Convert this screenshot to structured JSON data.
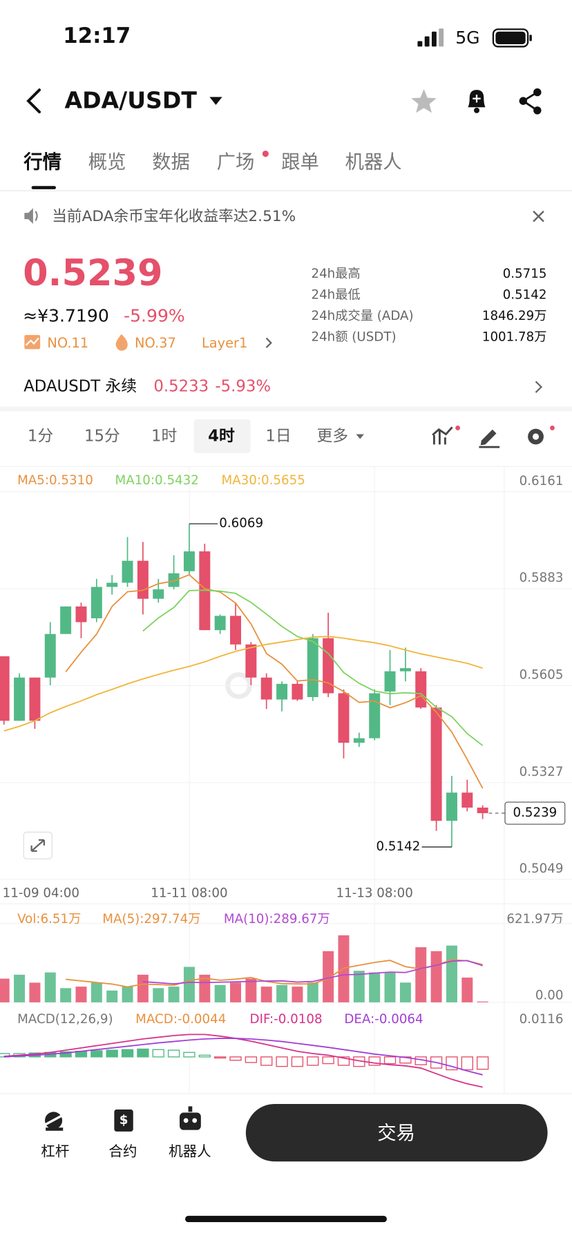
{
  "status_bar": {
    "time": "12:17",
    "network": "5G"
  },
  "header": {
    "pair": "ADA/USDT"
  },
  "tabs": [
    "行情",
    "概览",
    "数据",
    "广场",
    "跟单",
    "机器人"
  ],
  "active_tab": 0,
  "notice": "当前ADA余币宝年化收益率达2.51%",
  "price": {
    "last": "0.5239",
    "cny": "≈¥3.7190",
    "change": "-5.99%",
    "tags": [
      "NO.11",
      "NO.37",
      "Layer1"
    ]
  },
  "stats": [
    {
      "label": "24h最高",
      "value": "0.5715"
    },
    {
      "label": "24h最低",
      "value": "0.5142"
    },
    {
      "label": "24h成交量 (ADA)",
      "value": "1846.29万"
    },
    {
      "label": "24h额 (USDT)",
      "value": "1001.78万"
    }
  ],
  "perp": {
    "name": "ADAUSDT 永续",
    "price": "0.5233",
    "change": "-5.93%"
  },
  "intervals": [
    "1分",
    "15分",
    "1时",
    "4时",
    "1日",
    "更多"
  ],
  "active_interval": 3,
  "chart": {
    "type": "candlestick",
    "ma_labels": [
      {
        "text": "MA5:0.5310",
        "color": "#e8913f"
      },
      {
        "text": "MA10:0.5432",
        "color": "#7fd35e"
      },
      {
        "text": "MA30:0.5655",
        "color": "#f0b53a"
      }
    ],
    "up_color": "#52b986",
    "down_color": "#e5506a",
    "ylim": [
      0.5049,
      0.6161
    ],
    "yticks": [
      0.6161,
      0.5883,
      0.5605,
      0.5327,
      0.5049
    ],
    "xticks": [
      {
        "value": -1,
        "label": "11-09 04:00"
      },
      {
        "value": 12,
        "label": "11-11 08:00"
      },
      {
        "value": 24,
        "label": "11-13 08:00"
      }
    ],
    "candles": [
      {
        "open": 0.5689,
        "high": 0.5689,
        "low": 0.5493,
        "close": 0.5504
      },
      {
        "open": 0.5504,
        "high": 0.564,
        "low": 0.5504,
        "close": 0.5628
      },
      {
        "open": 0.5628,
        "high": 0.5628,
        "low": 0.5481,
        "close": 0.5504
      },
      {
        "open": 0.5628,
        "high": 0.5787,
        "low": 0.5606,
        "close": 0.5753
      },
      {
        "open": 0.5753,
        "high": 0.5832,
        "low": 0.5753,
        "close": 0.5832
      },
      {
        "open": 0.5832,
        "high": 0.5843,
        "low": 0.5741,
        "close": 0.5787
      },
      {
        "open": 0.5798,
        "high": 0.5911,
        "low": 0.5787,
        "close": 0.5888
      },
      {
        "open": 0.5888,
        "high": 0.5922,
        "low": 0.5866,
        "close": 0.59
      },
      {
        "open": 0.59,
        "high": 0.6031,
        "low": 0.5888,
        "close": 0.5963
      },
      {
        "open": 0.5963,
        "high": 0.6017,
        "low": 0.5809,
        "close": 0.5854
      },
      {
        "open": 0.5854,
        "high": 0.5911,
        "low": 0.5843,
        "close": 0.5881
      },
      {
        "open": 0.5888,
        "high": 0.5979,
        "low": 0.5881,
        "close": 0.5927
      },
      {
        "open": 0.5933,
        "high": 0.6069,
        "low": 0.5922,
        "close": 0.599
      },
      {
        "open": 0.599,
        "high": 0.6012,
        "low": 0.5764,
        "close": 0.5764
      },
      {
        "open": 0.5764,
        "high": 0.5809,
        "low": 0.5753,
        "close": 0.5805
      },
      {
        "open": 0.5805,
        "high": 0.5843,
        "low": 0.5707,
        "close": 0.5723
      },
      {
        "open": 0.5723,
        "high": 0.573,
        "low": 0.5606,
        "close": 0.5628
      },
      {
        "open": 0.5628,
        "high": 0.564,
        "low": 0.5538,
        "close": 0.5565
      },
      {
        "open": 0.5565,
        "high": 0.5617,
        "low": 0.5531,
        "close": 0.561
      },
      {
        "open": 0.561,
        "high": 0.5617,
        "low": 0.5561,
        "close": 0.5565
      },
      {
        "open": 0.5572,
        "high": 0.5753,
        "low": 0.5561,
        "close": 0.5741
      },
      {
        "open": 0.5741,
        "high": 0.5814,
        "low": 0.5572,
        "close": 0.5583
      },
      {
        "open": 0.5583,
        "high": 0.5594,
        "low": 0.5396,
        "close": 0.5441
      },
      {
        "open": 0.5441,
        "high": 0.547,
        "low": 0.5429,
        "close": 0.5454
      },
      {
        "open": 0.5454,
        "high": 0.5594,
        "low": 0.5448,
        "close": 0.5583
      },
      {
        "open": 0.5588,
        "high": 0.5707,
        "low": 0.5549,
        "close": 0.5646
      },
      {
        "open": 0.5646,
        "high": 0.5714,
        "low": 0.5617,
        "close": 0.5655
      },
      {
        "open": 0.5646,
        "high": 0.5655,
        "low": 0.5538,
        "close": 0.5542
      },
      {
        "open": 0.5542,
        "high": 0.5549,
        "low": 0.5188,
        "close": 0.5217
      },
      {
        "open": 0.5217,
        "high": 0.5346,
        "low": 0.5142,
        "close": 0.5298
      },
      {
        "open": 0.5298,
        "high": 0.5335,
        "low": 0.5244,
        "close": 0.5255
      },
      {
        "open": 0.5255,
        "high": 0.5262,
        "low": 0.5222,
        "close": 0.5239
      }
    ],
    "ma30": [
      0.5475,
      0.5488,
      0.5504,
      0.5527,
      0.5545,
      0.5561,
      0.5579,
      0.5594,
      0.561,
      0.5624,
      0.5637,
      0.5649,
      0.566,
      0.5673,
      0.5689,
      0.5703,
      0.5714,
      0.5723,
      0.573,
      0.5737,
      0.5744,
      0.5746,
      0.5741,
      0.5734,
      0.5728,
      0.5719,
      0.5707,
      0.5696,
      0.5687,
      0.5678,
      0.5669,
      0.5655
    ]
  },
  "volume": {
    "labels": [
      {
        "text": "Vol:6.51万",
        "color": "#e8913f"
      },
      {
        "text": "MA(5):297.74万",
        "color": "#e8913f"
      },
      {
        "text": "MA(10):289.67万",
        "color": "#b04ad0"
      }
    ],
    "ylim": [
      0,
      621.97
    ],
    "yticks": [
      {
        "value": 621.97,
        "label": "621.97万"
      },
      {
        "value": 0,
        "label": "0.00"
      }
    ],
    "values": [
      187,
      218,
      155,
      236,
      112,
      124,
      156,
      93,
      124,
      218,
      112,
      124,
      280,
      218,
      137,
      156,
      187,
      124,
      137,
      124,
      156,
      404,
      529,
      249,
      236,
      238,
      156,
      435,
      404,
      448,
      195.19,
      6.51
    ]
  },
  "macd": {
    "labels": [
      {
        "text": "MACD(12,26,9)",
        "color": "#777777"
      },
      {
        "text": "MACD:-0.0044",
        "color": "#e8913f"
      },
      {
        "text": "DIF:-0.0108",
        "color": "#d6338a"
      },
      {
        "text": "DEA:-0.0064",
        "color": "#a23fd6"
      }
    ],
    "ylim": [
      -0.0137,
      0.0116
    ],
    "yticks": [
      0.0116
    ],
    "hist": [
      0.0012,
      0.0012,
      0.0014,
      0.0016,
      0.0018,
      0.002,
      0.0022,
      0.0024,
      0.0026,
      0.0028,
      0.0026,
      0.0024,
      0.0016,
      0.0006,
      -0.0004,
      -0.0012,
      -0.002,
      -0.003,
      -0.0034,
      -0.0034,
      -0.003,
      -0.0024,
      -0.003,
      -0.0034,
      -0.003,
      -0.0024,
      -0.0022,
      -0.0028,
      -0.004,
      -0.0046,
      -0.0046,
      -0.0044
    ],
    "dif": [
      0.0002,
      0.0006,
      0.001,
      0.0016,
      0.0024,
      0.0032,
      0.004,
      0.0048,
      0.0056,
      0.0064,
      0.007,
      0.0076,
      0.008,
      0.008,
      0.0074,
      0.0066,
      0.0056,
      0.0044,
      0.0032,
      0.002,
      0.0012,
      0.0006,
      -0.0004,
      -0.0014,
      -0.0022,
      -0.0028,
      -0.0032,
      -0.004,
      -0.006,
      -0.008,
      -0.0096,
      -0.0108
    ],
    "dea": [
      0.0,
      0.0003,
      0.0006,
      0.001,
      0.0014,
      0.002,
      0.0026,
      0.0032,
      0.0038,
      0.0044,
      0.005,
      0.0055,
      0.006,
      0.0064,
      0.0066,
      0.0066,
      0.0064,
      0.006,
      0.0055,
      0.0048,
      0.0041,
      0.0034,
      0.0026,
      0.0018,
      0.001,
      0.0004,
      -0.0002,
      -0.001,
      -0.002,
      -0.0034,
      -0.005,
      -0.0064
    ]
  },
  "bottom_nav": [
    "杠杆",
    "合约",
    "机器人"
  ],
  "trade_button": "交易"
}
